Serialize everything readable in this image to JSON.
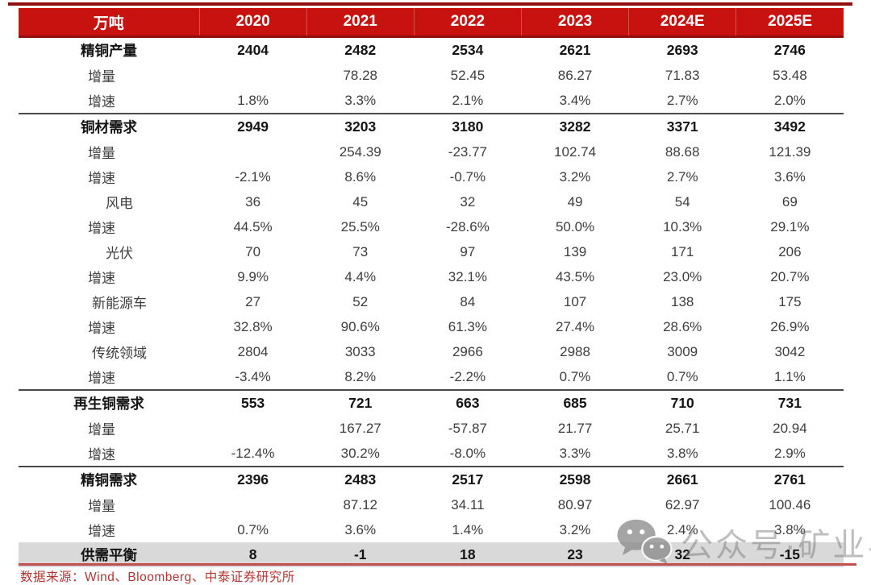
{
  "table": {
    "unit_label": "万吨",
    "year_columns": [
      "2020",
      "2021",
      "2022",
      "2023",
      "2024E",
      "2025E"
    ],
    "rows": [
      {
        "label": "精铜产量",
        "level": "section",
        "values": [
          "2404",
          "2482",
          "2534",
          "2621",
          "2693",
          "2746"
        ],
        "divider_below": false
      },
      {
        "label": "增量",
        "level": "sub",
        "values": [
          "",
          "78.28",
          "52.45",
          "86.27",
          "71.83",
          "53.48"
        ],
        "divider_below": false
      },
      {
        "label": "增速",
        "level": "sub",
        "values": [
          "1.8%",
          "3.3%",
          "2.1%",
          "3.4%",
          "2.7%",
          "2.0%"
        ],
        "divider_below": true
      },
      {
        "label": "铜材需求",
        "level": "section",
        "values": [
          "2949",
          "3203",
          "3180",
          "3282",
          "3371",
          "3492"
        ],
        "divider_below": false
      },
      {
        "label": "增量",
        "level": "sub",
        "values": [
          "",
          "254.39",
          "-23.77",
          "102.74",
          "88.68",
          "121.39"
        ],
        "divider_below": false
      },
      {
        "label": "增速",
        "level": "sub",
        "values": [
          "-2.1%",
          "8.6%",
          "-0.7%",
          "3.2%",
          "2.7%",
          "3.6%"
        ],
        "divider_below": false
      },
      {
        "label": "风电",
        "level": "sub2",
        "values": [
          "36",
          "45",
          "32",
          "49",
          "54",
          "69"
        ],
        "divider_below": false
      },
      {
        "label": "增速",
        "level": "sub",
        "values": [
          "44.5%",
          "25.5%",
          "-28.6%",
          "50.0%",
          "10.3%",
          "29.1%"
        ],
        "divider_below": false
      },
      {
        "label": "光伏",
        "level": "sub2",
        "values": [
          "70",
          "73",
          "97",
          "139",
          "171",
          "206"
        ],
        "divider_below": false
      },
      {
        "label": "增速",
        "level": "sub",
        "values": [
          "9.9%",
          "4.4%",
          "32.1%",
          "43.5%",
          "23.0%",
          "20.7%"
        ],
        "divider_below": false
      },
      {
        "label": "新能源车",
        "level": "sub2",
        "values": [
          "27",
          "52",
          "84",
          "107",
          "138",
          "175"
        ],
        "divider_below": false
      },
      {
        "label": "增速",
        "level": "sub",
        "values": [
          "32.8%",
          "90.6%",
          "61.3%",
          "27.4%",
          "28.6%",
          "26.9%"
        ],
        "divider_below": false
      },
      {
        "label": "传统领域",
        "level": "sub2",
        "values": [
          "2804",
          "3033",
          "2966",
          "2988",
          "3009",
          "3042"
        ],
        "divider_below": false
      },
      {
        "label": "增速",
        "level": "sub",
        "values": [
          "-3.4%",
          "8.2%",
          "-2.2%",
          "0.7%",
          "0.7%",
          "1.1%"
        ],
        "divider_below": true
      },
      {
        "label": "再生铜需求",
        "level": "section",
        "values": [
          "553",
          "721",
          "663",
          "685",
          "710",
          "731"
        ],
        "divider_below": false
      },
      {
        "label": "增量",
        "level": "sub",
        "values": [
          "",
          "167.27",
          "-57.87",
          "21.77",
          "25.71",
          "20.94"
        ],
        "divider_below": false
      },
      {
        "label": "增速",
        "level": "sub",
        "values": [
          "-12.4%",
          "30.2%",
          "-8.0%",
          "3.3%",
          "3.8%",
          "2.9%"
        ],
        "divider_below": true
      },
      {
        "label": "精铜需求",
        "level": "section",
        "values": [
          "2396",
          "2483",
          "2517",
          "2598",
          "2661",
          "2761"
        ],
        "divider_below": false
      },
      {
        "label": "增量",
        "level": "sub",
        "values": [
          "",
          "87.12",
          "34.11",
          "80.97",
          "62.97",
          "100.46"
        ],
        "divider_below": false
      },
      {
        "label": "增速",
        "level": "sub",
        "values": [
          "0.7%",
          "3.6%",
          "1.4%",
          "3.2%",
          "2.4%",
          "3.8%"
        ],
        "divider_below": false
      },
      {
        "label": "供需平衡",
        "level": "balance",
        "values": [
          "8",
          "-1",
          "18",
          "23",
          "32",
          "-15"
        ],
        "divider_below": false
      }
    ]
  },
  "footer": {
    "source": "数据来源：Wind、Bloomberg、中泰证券研究所"
  },
  "watermark": {
    "icon": "wechat-icon",
    "text": "公众号·矿业界"
  },
  "colors": {
    "header_red": "#c8120f",
    "header_separator_red": "#d9504a",
    "dark_red_line": "#8f0e0e",
    "bottom_line_red": "#c0504d",
    "source_text_red": "#b23531",
    "balance_row_gray": "#d9d9d9",
    "divider_gray": "#4a4a4a",
    "watermark_gray": "#787878"
  }
}
